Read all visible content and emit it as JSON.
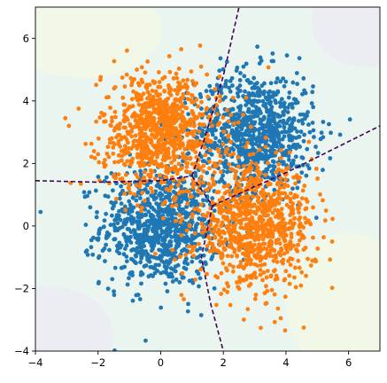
{
  "chart_data": {
    "type": "scatter",
    "title": "",
    "xlabel": "",
    "ylabel": "",
    "xlim": [
      -4,
      7
    ],
    "ylim": [
      -4,
      7
    ],
    "grid": false,
    "legend": "none",
    "x_ticks": [
      -4,
      -2,
      0,
      2,
      4,
      6
    ],
    "y_ticks": [
      -4,
      -2,
      0,
      2,
      4,
      6
    ],
    "x_tick_labels": [
      "−4",
      "−2",
      "0",
      "2",
      "4",
      "6"
    ],
    "y_tick_labels": [
      "−4",
      "−2",
      "0",
      "2",
      "4",
      "6"
    ],
    "series": [
      {
        "color": "#1f77b4",
        "clusters": [
          {
            "center": [
              0.0,
              0.0
            ],
            "spread": 0.95,
            "count": 900
          },
          {
            "center": [
              3.0,
              3.0
            ],
            "spread": 0.95,
            "count": 900
          }
        ]
      },
      {
        "color": "#ff7f0e",
        "clusters": [
          {
            "center": [
              0.0,
              3.0
            ],
            "spread": 0.95,
            "count": 900
          },
          {
            "center": [
              3.0,
              0.0
            ],
            "spread": 0.95,
            "count": 900
          }
        ]
      }
    ],
    "decision_boundaries": {
      "color": "#440154",
      "style": "dashed",
      "lines": [
        [
          [
            -4.0,
            1.45
          ],
          [
            -2.0,
            1.4
          ],
          [
            0.0,
            1.45
          ],
          [
            1.0,
            1.6
          ]
        ],
        [
          [
            1.0,
            1.6
          ],
          [
            1.4,
            2.8
          ],
          [
            2.0,
            4.8
          ],
          [
            2.5,
            7.0
          ]
        ],
        [
          [
            1.65,
            0.65
          ],
          [
            4.0,
            1.7
          ],
          [
            7.0,
            3.2
          ]
        ],
        [
          [
            1.0,
            1.6
          ],
          [
            1.65,
            0.65
          ]
        ],
        [
          [
            1.65,
            0.65
          ],
          [
            1.3,
            -1.0
          ],
          [
            1.6,
            -2.5
          ],
          [
            2.0,
            -4.0
          ]
        ]
      ]
    },
    "background_regions": [
      {
        "color": "#e9f4ee",
        "opacity": 0.9
      },
      {
        "color": "#f4f9e6",
        "opacity": 0.8
      },
      {
        "color": "#ecebf3",
        "opacity": 0.8
      }
    ]
  }
}
